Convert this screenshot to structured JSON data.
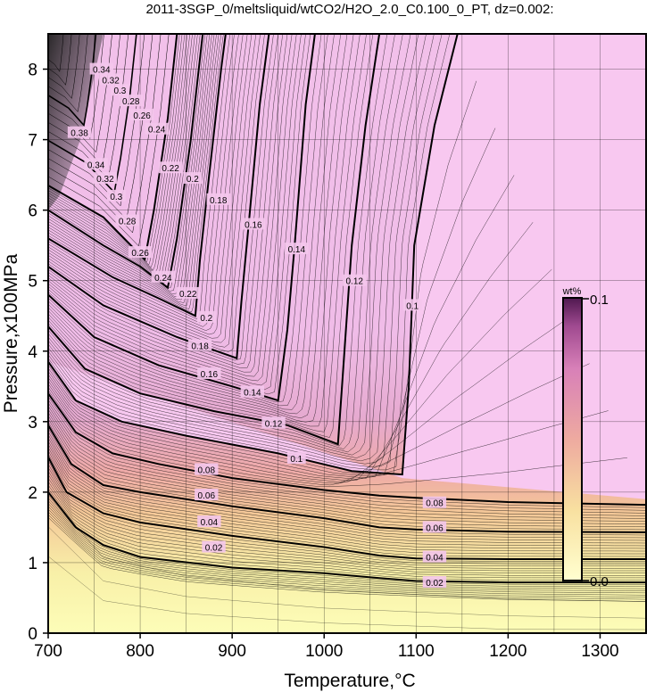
{
  "chart_data": {
    "type": "heatmap",
    "title": "2011-3SGP_0/meltsliquid/wtCO2/H2O_2.0_C0.100_0_PT, dz=0.002:",
    "xlabel": "Temperature,°C",
    "ylabel": "Pressure,x100MPa",
    "xlim": [
      700,
      1350
    ],
    "ylim": [
      0,
      8.5
    ],
    "x_ticks": [
      "700",
      "800",
      "900",
      "1000",
      "1100",
      "1200",
      "1300"
    ],
    "y_ticks": [
      "0",
      "1",
      "2",
      "3",
      "4",
      "5",
      "6",
      "7",
      "8"
    ],
    "grid": true,
    "colorbar": {
      "unit": "wt%",
      "min_label": "0.0",
      "max_label": "0.1",
      "min": 0.0,
      "max": 0.1,
      "placement": "right-inside",
      "colors": [
        "#ffffc8",
        "#f0b090",
        "#e88aa8",
        "#c868b8",
        "#602060"
      ]
    },
    "high_region_color": "#f8c8f0",
    "major_contours": [
      {
        "value": 0.02,
        "label": "0.02",
        "points": [
          [
            700,
            2.0
          ],
          [
            730,
            1.5
          ],
          [
            760,
            1.25
          ],
          [
            800,
            1.08
          ],
          [
            900,
            0.93
          ],
          [
            1000,
            0.85
          ],
          [
            1060,
            0.78
          ],
          [
            1100,
            0.74
          ],
          [
            1200,
            0.72
          ],
          [
            1350,
            0.72
          ]
        ]
      },
      {
        "value": 0.04,
        "label": "0.04",
        "points": [
          [
            700,
            2.5
          ],
          [
            720,
            2.0
          ],
          [
            760,
            1.7
          ],
          [
            800,
            1.57
          ],
          [
            900,
            1.38
          ],
          [
            1000,
            1.22
          ],
          [
            1060,
            1.1
          ],
          [
            1100,
            1.06
          ],
          [
            1200,
            1.05
          ],
          [
            1350,
            1.05
          ]
        ]
      },
      {
        "value": 0.06,
        "label": "0.06",
        "points": [
          [
            700,
            2.95
          ],
          [
            725,
            2.4
          ],
          [
            760,
            2.1
          ],
          [
            800,
            2.0
          ],
          [
            900,
            1.8
          ],
          [
            1000,
            1.63
          ],
          [
            1060,
            1.5
          ],
          [
            1100,
            1.47
          ],
          [
            1200,
            1.44
          ],
          [
            1350,
            1.43
          ]
        ]
      },
      {
        "value": 0.08,
        "label": "0.08",
        "points": [
          [
            700,
            3.4
          ],
          [
            730,
            2.85
          ],
          [
            770,
            2.55
          ],
          [
            820,
            2.4
          ],
          [
            900,
            2.2
          ],
          [
            1000,
            2.03
          ],
          [
            1060,
            1.95
          ],
          [
            1100,
            1.92
          ],
          [
            1200,
            1.86
          ],
          [
            1350,
            1.82
          ]
        ]
      },
      {
        "value": 0.1,
        "label": "0.1",
        "points": [
          [
            700,
            3.85
          ],
          [
            730,
            3.3
          ],
          [
            780,
            3.0
          ],
          [
            850,
            2.8
          ],
          [
            950,
            2.55
          ],
          [
            1030,
            2.3
          ],
          [
            1085,
            2.25
          ],
          [
            1092,
            3.5
          ],
          [
            1098,
            5.5
          ],
          [
            1120,
            7.2
          ],
          [
            1145,
            8.5
          ]
        ]
      },
      {
        "value": 0.12,
        "label": "0.12",
        "points": [
          [
            700,
            4.35
          ],
          [
            740,
            3.75
          ],
          [
            800,
            3.4
          ],
          [
            880,
            3.15
          ],
          [
            960,
            2.95
          ],
          [
            1015,
            2.68
          ],
          [
            1020,
            3.6
          ],
          [
            1030,
            5.5
          ],
          [
            1045,
            7.2
          ],
          [
            1060,
            8.5
          ]
        ]
      },
      {
        "value": 0.14,
        "label": "0.14",
        "points": [
          [
            700,
            4.8
          ],
          [
            750,
            4.2
          ],
          [
            820,
            3.8
          ],
          [
            900,
            3.5
          ],
          [
            950,
            3.3
          ],
          [
            960,
            4.3
          ],
          [
            968,
            5.5
          ],
          [
            980,
            7.5
          ],
          [
            990,
            8.5
          ]
        ]
      },
      {
        "value": 0.16,
        "label": "0.16",
        "points": [
          [
            700,
            5.2
          ],
          [
            760,
            4.65
          ],
          [
            840,
            4.2
          ],
          [
            905,
            3.9
          ],
          [
            910,
            4.7
          ],
          [
            918,
            5.8
          ],
          [
            930,
            7.5
          ],
          [
            940,
            8.5
          ]
        ]
      },
      {
        "value": 0.18,
        "label": "0.18",
        "points": [
          [
            700,
            5.6
          ],
          [
            770,
            5.05
          ],
          [
            820,
            4.75
          ],
          [
            860,
            4.5
          ],
          [
            865,
            5.3
          ],
          [
            875,
            6.5
          ],
          [
            888,
            8.0
          ],
          [
            893,
            8.5
          ]
        ]
      },
      {
        "value": 0.2,
        "label": "0.2",
        "points": [
          [
            700,
            6.0
          ],
          [
            760,
            5.5
          ],
          [
            800,
            5.2
          ],
          [
            830,
            4.9
          ],
          [
            840,
            5.6
          ],
          [
            855,
            7.0
          ],
          [
            868,
            8.5
          ]
        ]
      },
      {
        "value": 0.22,
        "label": "0.22",
        "points": [
          [
            700,
            6.35
          ],
          [
            760,
            5.9
          ],
          [
            805,
            5.3
          ],
          [
            815,
            6.0
          ],
          [
            830,
            7.3
          ],
          [
            840,
            8.5
          ]
        ]
      }
    ],
    "contour_labels": [
      {
        "value": 0.02,
        "label": "0.02",
        "x": 880,
        "y": 1.22
      },
      {
        "value": 0.04,
        "label": "0.04",
        "x": 875,
        "y": 1.58
      },
      {
        "value": 0.06,
        "label": "0.06",
        "x": 872,
        "y": 1.96
      },
      {
        "value": 0.08,
        "label": "0.08",
        "x": 872,
        "y": 2.32
      },
      {
        "value": 0.1,
        "label": "0.1",
        "x": 970,
        "y": 2.48
      },
      {
        "value": 0.12,
        "label": "0.12",
        "x": 945,
        "y": 2.98
      },
      {
        "value": 0.14,
        "label": "0.14",
        "x": 922,
        "y": 3.42
      },
      {
        "value": 0.16,
        "label": "0.16",
        "x": 875,
        "y": 3.68
      },
      {
        "value": 0.18,
        "label": "0.18",
        "x": 865,
        "y": 4.08
      },
      {
        "value": 0.2,
        "label": "0.2",
        "x": 872,
        "y": 4.48
      },
      {
        "value": 0.22,
        "label": "0.22",
        "x": 852,
        "y": 4.82
      },
      {
        "value": 0.24,
        "label": "0.24",
        "x": 825,
        "y": 5.05
      },
      {
        "value": 0.26,
        "label": "0.26",
        "x": 800,
        "y": 5.4
      },
      {
        "value": 0.28,
        "label": "0.28",
        "x": 786,
        "y": 5.85
      },
      {
        "value": 0.3,
        "label": "0.3",
        "x": 774,
        "y": 6.2
      },
      {
        "value": 0.32,
        "label": "0.32",
        "x": 762,
        "y": 6.45
      },
      {
        "value": 0.34,
        "label": "0.34",
        "x": 752,
        "y": 6.65
      },
      {
        "value": 0.38,
        "label": "0.38",
        "x": 734,
        "y": 7.1
      },
      {
        "value": 0.1,
        "label": "0.1",
        "x": 1096,
        "y": 4.65
      },
      {
        "value": 0.12,
        "label": "0.12",
        "x": 1033,
        "y": 5.0
      },
      {
        "value": 0.14,
        "label": "0.14",
        "x": 970,
        "y": 5.45
      },
      {
        "value": 0.16,
        "label": "0.16",
        "x": 923,
        "y": 5.8
      },
      {
        "value": 0.18,
        "label": "0.18",
        "x": 885,
        "y": 6.15
      },
      {
        "value": 0.2,
        "label": "0.2",
        "x": 857,
        "y": 6.45
      },
      {
        "value": 0.22,
        "label": "0.22",
        "x": 833,
        "y": 6.6
      },
      {
        "value": 0.24,
        "label": "0.24",
        "x": 818,
        "y": 7.15
      },
      {
        "value": 0.26,
        "label": "0.26",
        "x": 802,
        "y": 7.35
      },
      {
        "value": 0.28,
        "label": "0.28",
        "x": 790,
        "y": 7.55
      },
      {
        "value": 0.3,
        "label": "0.3",
        "x": 778,
        "y": 7.7
      },
      {
        "value": 0.32,
        "label": "0.32",
        "x": 768,
        "y": 7.85
      },
      {
        "value": 0.34,
        "label": "0.34",
        "x": 758,
        "y": 8.0
      },
      {
        "value": 0.08,
        "label": "0.08",
        "x": 1120,
        "y": 1.85
      },
      {
        "value": 0.06,
        "label": "0.06",
        "x": 1120,
        "y": 1.5
      },
      {
        "value": 0.04,
        "label": "0.04",
        "x": 1120,
        "y": 1.08
      },
      {
        "value": 0.02,
        "label": "0.02",
        "x": 1120,
        "y": 0.72
      }
    ]
  }
}
